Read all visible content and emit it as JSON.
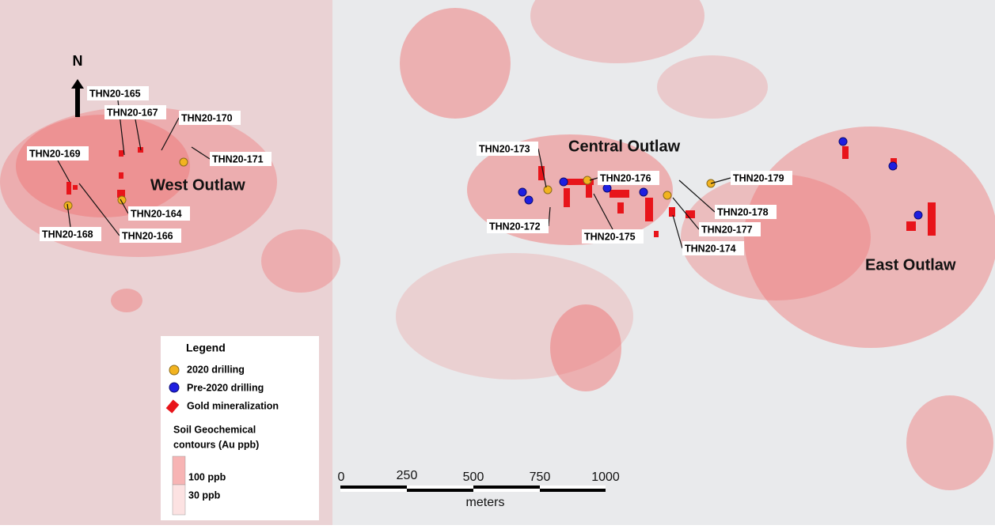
{
  "north_arrow": "N",
  "areas": [
    "West Outlaw",
    "Central Outlaw",
    "East Outlaw"
  ],
  "drill_holes": [
    "THN20-165",
    "THN20-167",
    "THN20-170",
    "THN20-171",
    "THN20-169",
    "THN20-168",
    "THN20-166",
    "THN20-164",
    "THN20-173",
    "THN20-172",
    "THN20-176",
    "THN20-175",
    "THN20-179",
    "THN20-178",
    "THN20-177",
    "THN20-174"
  ],
  "legend": {
    "title": "Legend",
    "items": [
      "2020 drilling",
      "Pre-2020 drilling",
      "Gold mineralization"
    ],
    "contours_title": [
      "Soil Geochemical",
      "contours (Au ppb)"
    ],
    "contours": [
      "100 ppb",
      "30 ppb"
    ]
  },
  "scale_bar": {
    "ticks": [
      "0",
      "250",
      "500",
      "750",
      "1000"
    ],
    "unit": "meters"
  }
}
